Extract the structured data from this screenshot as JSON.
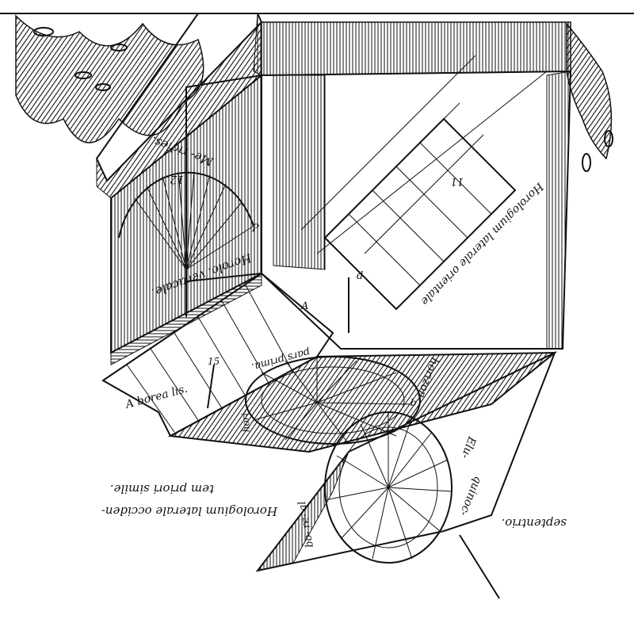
{
  "colors": {
    "ink": "#111111",
    "paper": "#ffffff"
  },
  "labels": {
    "top_meridian": "Me-  ridies.",
    "hour_12": "12.",
    "vertical_label": "Horolo.  verticale.",
    "right_wall": "Horologium laterale orientale",
    "hour_11": "11",
    "small_hour_15": "15",
    "pars_label": "pars  prima.",
    "bottom_left": "A  borea  lis.",
    "horizon_small": "hori-",
    "horizon": "horizon-",
    "letter_a": "A",
    "letter_p": "P",
    "letter_d": "d",
    "letter_b": "b",
    "lower_right_1": "Elu-",
    "lower_right_2": "quinoc-",
    "lower_left": "bo-  re-  al",
    "septentrio": "septentrio.",
    "caption_line1": "Horologium laterale occiden-",
    "caption_line2": "tem priori simile."
  }
}
